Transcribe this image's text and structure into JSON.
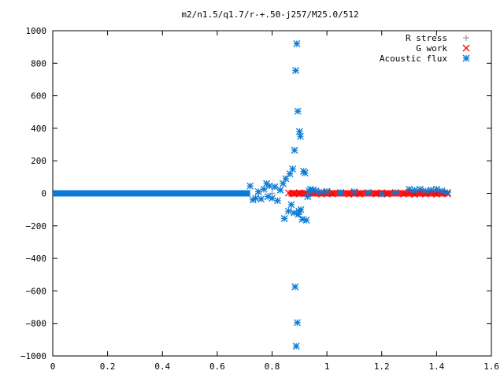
{
  "chart_data": {
    "type": "scatter",
    "title": "m2/n1.5/q1.7/r-+.50-j257/M25.0/512",
    "xlabel": "",
    "ylabel": "",
    "xlim": [
      0,
      1.6
    ],
    "ylim": [
      -1000,
      1000
    ],
    "x_ticks": [
      "0",
      "0.2",
      "0.4",
      "0.6",
      "0.8",
      "1",
      "1.2",
      "1.4",
      "1.6"
    ],
    "y_ticks": [
      "1000",
      "800",
      "600",
      "400",
      "200",
      "0",
      "−200",
      "−400",
      "−600",
      "−800",
      "−1000"
    ],
    "legend_position": "top-right",
    "grid": false,
    "series": [
      {
        "name": "R stress",
        "marker": "plus",
        "color": "#a0a0a0",
        "points": [
          [
            0.75,
            0
          ],
          [
            0.8,
            0
          ],
          [
            0.9,
            0
          ],
          [
            1.0,
            0
          ],
          [
            1.1,
            0
          ],
          [
            1.2,
            0
          ],
          [
            1.3,
            0
          ],
          [
            1.4,
            0
          ]
        ]
      },
      {
        "name": "G work",
        "marker": "cross",
        "color": "#ff0000",
        "points": [
          [
            0.86,
            2
          ],
          [
            0.88,
            -3
          ],
          [
            0.9,
            4
          ],
          [
            0.92,
            -2
          ],
          [
            0.95,
            3
          ],
          [
            0.98,
            -4
          ],
          [
            1.0,
            5
          ],
          [
            1.02,
            -3
          ],
          [
            1.05,
            4
          ],
          [
            1.08,
            -5
          ],
          [
            1.1,
            3
          ],
          [
            1.12,
            -4
          ],
          [
            1.15,
            5
          ],
          [
            1.18,
            -3
          ],
          [
            1.2,
            4
          ],
          [
            1.22,
            -5
          ],
          [
            1.25,
            3
          ],
          [
            1.28,
            -4
          ],
          [
            1.3,
            6
          ],
          [
            1.32,
            -6
          ],
          [
            1.34,
            5
          ],
          [
            1.36,
            -4
          ],
          [
            1.38,
            6
          ],
          [
            1.4,
            -5
          ],
          [
            1.42,
            4
          ],
          [
            1.44,
            -3
          ]
        ]
      },
      {
        "name": "Acoustic flux",
        "marker": "star",
        "color": "#0a7ad6",
        "points": [
          [
            0.72,
            45
          ],
          [
            0.73,
            -40
          ],
          [
            0.74,
            -30
          ],
          [
            0.75,
            10
          ],
          [
            0.76,
            -35
          ],
          [
            0.77,
            25
          ],
          [
            0.78,
            60
          ],
          [
            0.785,
            -20
          ],
          [
            0.79,
            45
          ],
          [
            0.8,
            -30
          ],
          [
            0.81,
            40
          ],
          [
            0.82,
            -45
          ],
          [
            0.83,
            20
          ],
          [
            0.84,
            60
          ],
          [
            0.845,
            -155
          ],
          [
            0.85,
            90
          ],
          [
            0.86,
            -110
          ],
          [
            0.865,
            120
          ],
          [
            0.87,
            -70
          ],
          [
            0.875,
            150
          ],
          [
            0.88,
            -120
          ],
          [
            0.882,
            265
          ],
          [
            0.884,
            -575
          ],
          [
            0.886,
            755
          ],
          [
            0.888,
            -940
          ],
          [
            0.89,
            920
          ],
          [
            0.892,
            -795
          ],
          [
            0.894,
            505
          ],
          [
            0.896,
            -130
          ],
          [
            0.898,
            -110
          ],
          [
            0.9,
            380
          ],
          [
            0.903,
            350
          ],
          [
            0.905,
            -100
          ],
          [
            0.91,
            -160
          ],
          [
            0.915,
            135
          ],
          [
            0.92,
            125
          ],
          [
            0.925,
            -165
          ],
          [
            0.93,
            -20
          ],
          [
            0.935,
            15
          ],
          [
            0.94,
            25
          ],
          [
            0.95,
            20
          ],
          [
            0.96,
            15
          ],
          [
            0.98,
            8
          ],
          [
            1.0,
            12
          ],
          [
            1.05,
            5
          ],
          [
            1.1,
            10
          ],
          [
            1.15,
            3
          ],
          [
            1.2,
            -5
          ],
          [
            1.25,
            5
          ],
          [
            1.3,
            25
          ],
          [
            1.32,
            20
          ],
          [
            1.34,
            25
          ],
          [
            1.36,
            15
          ],
          [
            1.38,
            20
          ],
          [
            1.4,
            25
          ],
          [
            1.42,
            15
          ],
          [
            1.44,
            5
          ]
        ],
        "baseline_band": {
          "x_from": 0.0,
          "x_to": 0.72,
          "y": 0
        }
      }
    ]
  }
}
